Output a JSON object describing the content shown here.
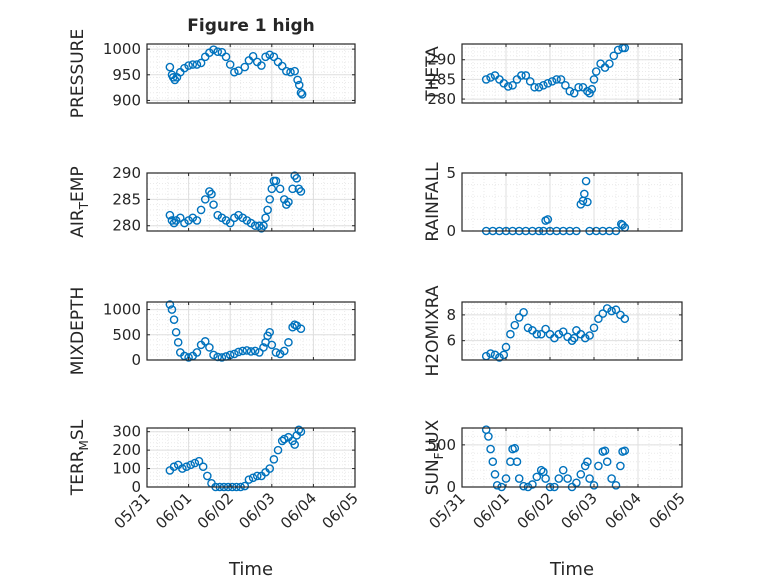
{
  "figure_title": "Figure 1 high",
  "colors": {
    "marker": "#0072BD",
    "axes": "#262626",
    "grid": "#DFDFDF",
    "minor_grid": "#EAEAEA"
  },
  "chart_data": [
    {
      "type": "scatter",
      "panel": "top-left",
      "ylabel": "PRESSURE",
      "ylim": [
        895,
        1010
      ],
      "yticks": [
        900,
        950,
        1000
      ],
      "ytick_labels": [
        "900",
        "950",
        "1000"
      ],
      "xticks": [
        "05/31",
        "06/01",
        "06/02",
        "06/03",
        "06/04",
        "06/05"
      ],
      "xlabel": "",
      "grid": true,
      "points": [
        [
          0.55,
          965
        ],
        [
          0.6,
          950
        ],
        [
          0.63,
          945
        ],
        [
          0.67,
          940
        ],
        [
          0.72,
          945
        ],
        [
          0.8,
          955
        ],
        [
          0.9,
          963
        ],
        [
          1.0,
          968
        ],
        [
          1.1,
          970
        ],
        [
          1.2,
          970
        ],
        [
          1.3,
          973
        ],
        [
          1.4,
          985
        ],
        [
          1.5,
          993
        ],
        [
          1.6,
          999
        ],
        [
          1.7,
          995
        ],
        [
          1.8,
          994
        ],
        [
          1.9,
          985
        ],
        [
          2.0,
          970
        ],
        [
          2.1,
          955
        ],
        [
          2.2,
          958
        ],
        [
          2.35,
          965
        ],
        [
          2.45,
          978
        ],
        [
          2.55,
          986
        ],
        [
          2.65,
          975
        ],
        [
          2.75,
          968
        ],
        [
          2.85,
          985
        ],
        [
          2.95,
          989
        ],
        [
          3.05,
          985
        ],
        [
          3.15,
          975
        ],
        [
          3.25,
          967
        ],
        [
          3.35,
          957
        ],
        [
          3.45,
          955
        ],
        [
          3.55,
          957
        ],
        [
          3.62,
          940
        ],
        [
          3.66,
          930
        ],
        [
          3.7,
          915
        ],
        [
          3.73,
          912
        ]
      ]
    },
    {
      "type": "scatter",
      "panel": "top-right",
      "ylabel": "THETA",
      "ylim": [
        279,
        294
      ],
      "yticks": [
        280,
        285,
        290
      ],
      "ytick_labels": [
        "280",
        "285",
        "290"
      ],
      "xticks": [
        "05/31",
        "06/01",
        "06/02",
        "06/03",
        "06/04",
        "06/05"
      ],
      "xlabel": "",
      "grid": true,
      "points": [
        [
          0.55,
          285
        ],
        [
          0.65,
          285.5
        ],
        [
          0.75,
          286
        ],
        [
          0.85,
          285
        ],
        [
          0.95,
          284
        ],
        [
          1.05,
          283.2
        ],
        [
          1.15,
          283.5
        ],
        [
          1.25,
          285
        ],
        [
          1.35,
          286
        ],
        [
          1.45,
          286
        ],
        [
          1.55,
          284.5
        ],
        [
          1.65,
          283
        ],
        [
          1.75,
          283
        ],
        [
          1.85,
          283.5
        ],
        [
          1.95,
          284
        ],
        [
          2.05,
          284.5
        ],
        [
          2.15,
          285
        ],
        [
          2.25,
          285
        ],
        [
          2.35,
          283.5
        ],
        [
          2.45,
          282
        ],
        [
          2.55,
          281.5
        ],
        [
          2.65,
          283
        ],
        [
          2.75,
          283
        ],
        [
          2.85,
          282
        ],
        [
          2.9,
          281.5
        ],
        [
          2.95,
          282.5
        ],
        [
          3.0,
          285
        ],
        [
          3.05,
          287
        ],
        [
          3.15,
          289
        ],
        [
          3.25,
          288
        ],
        [
          3.35,
          289
        ],
        [
          3.45,
          291
        ],
        [
          3.55,
          292.5
        ],
        [
          3.65,
          293
        ],
        [
          3.7,
          293
        ]
      ]
    },
    {
      "type": "scatter",
      "panel": "second-left",
      "ylabel": "AIR_TEMP",
      "ylim": [
        279,
        290
      ],
      "yticks": [
        280,
        285,
        290
      ],
      "ytick_labels": [
        "280",
        "285",
        "290"
      ],
      "xticks": [
        "05/31",
        "06/01",
        "06/02",
        "06/03",
        "06/04",
        "06/05"
      ],
      "xlabel": "",
      "grid": true,
      "points": [
        [
          0.55,
          282
        ],
        [
          0.6,
          281
        ],
        [
          0.65,
          280.5
        ],
        [
          0.7,
          281
        ],
        [
          0.8,
          281.5
        ],
        [
          0.9,
          280.5
        ],
        [
          1.0,
          281
        ],
        [
          1.1,
          281.5
        ],
        [
          1.2,
          281
        ],
        [
          1.3,
          283
        ],
        [
          1.4,
          285
        ],
        [
          1.5,
          286.5
        ],
        [
          1.55,
          286
        ],
        [
          1.6,
          284
        ],
        [
          1.7,
          282
        ],
        [
          1.8,
          281.5
        ],
        [
          1.9,
          281
        ],
        [
          2.0,
          280.5
        ],
        [
          2.1,
          281.5
        ],
        [
          2.2,
          282
        ],
        [
          2.3,
          281.5
        ],
        [
          2.4,
          281
        ],
        [
          2.5,
          280.5
        ],
        [
          2.6,
          280
        ],
        [
          2.7,
          280
        ],
        [
          2.75,
          279.5
        ],
        [
          2.8,
          280
        ],
        [
          2.85,
          281.5
        ],
        [
          2.9,
          283
        ],
        [
          2.95,
          285
        ],
        [
          3.0,
          287
        ],
        [
          3.05,
          288.5
        ],
        [
          3.1,
          288.5
        ],
        [
          3.2,
          287
        ],
        [
          3.3,
          285
        ],
        [
          3.35,
          284
        ],
        [
          3.4,
          284.5
        ],
        [
          3.5,
          287
        ],
        [
          3.55,
          289.5
        ],
        [
          3.6,
          289
        ],
        [
          3.65,
          287
        ],
        [
          3.7,
          286.5
        ]
      ]
    },
    {
      "type": "scatter",
      "panel": "second-right",
      "ylabel": "RAINFALL",
      "ylim": [
        0,
        5
      ],
      "yticks": [
        0,
        5
      ],
      "ytick_labels": [
        "0",
        "5"
      ],
      "xticks": [
        "05/31",
        "06/01",
        "06/02",
        "06/03",
        "06/04",
        "06/05"
      ],
      "xlabel": "",
      "grid": true,
      "points": [
        [
          0.55,
          0
        ],
        [
          0.7,
          0
        ],
        [
          0.85,
          0
        ],
        [
          1.0,
          0
        ],
        [
          1.15,
          0
        ],
        [
          1.3,
          0
        ],
        [
          1.45,
          0
        ],
        [
          1.6,
          0
        ],
        [
          1.75,
          0
        ],
        [
          1.85,
          0
        ],
        [
          1.9,
          0.9
        ],
        [
          1.95,
          1.0
        ],
        [
          2.0,
          0
        ],
        [
          2.15,
          0
        ],
        [
          2.3,
          0
        ],
        [
          2.45,
          0
        ],
        [
          2.6,
          0
        ],
        [
          2.7,
          2.3
        ],
        [
          2.75,
          2.6
        ],
        [
          2.78,
          3.2
        ],
        [
          2.82,
          4.3
        ],
        [
          2.85,
          2.5
        ],
        [
          2.9,
          0
        ],
        [
          3.05,
          0
        ],
        [
          3.2,
          0
        ],
        [
          3.35,
          0
        ],
        [
          3.5,
          0
        ],
        [
          3.62,
          0.6
        ],
        [
          3.65,
          0.5
        ],
        [
          3.7,
          0.3
        ]
      ]
    },
    {
      "type": "scatter",
      "panel": "third-left",
      "ylabel": "MIXDEPTH",
      "ylim": [
        0,
        1150
      ],
      "yticks": [
        0,
        500,
        1000
      ],
      "ytick_labels": [
        "0",
        "500",
        "1000"
      ],
      "xticks": [
        "05/31",
        "06/01",
        "06/02",
        "06/03",
        "06/04",
        "06/05"
      ],
      "xlabel": "",
      "grid": true,
      "points": [
        [
          0.55,
          1100
        ],
        [
          0.6,
          1000
        ],
        [
          0.65,
          800
        ],
        [
          0.7,
          550
        ],
        [
          0.75,
          350
        ],
        [
          0.8,
          150
        ],
        [
          0.9,
          80
        ],
        [
          1.0,
          50
        ],
        [
          1.1,
          80
        ],
        [
          1.2,
          150
        ],
        [
          1.3,
          300
        ],
        [
          1.4,
          370
        ],
        [
          1.5,
          250
        ],
        [
          1.6,
          100
        ],
        [
          1.7,
          60
        ],
        [
          1.8,
          50
        ],
        [
          1.9,
          70
        ],
        [
          2.0,
          100
        ],
        [
          2.1,
          120
        ],
        [
          2.2,
          160
        ],
        [
          2.3,
          180
        ],
        [
          2.4,
          190
        ],
        [
          2.5,
          170
        ],
        [
          2.6,
          180
        ],
        [
          2.7,
          150
        ],
        [
          2.8,
          250
        ],
        [
          2.85,
          350
        ],
        [
          2.9,
          480
        ],
        [
          2.95,
          550
        ],
        [
          3.0,
          300
        ],
        [
          3.1,
          150
        ],
        [
          3.2,
          120
        ],
        [
          3.3,
          180
        ],
        [
          3.4,
          350
        ],
        [
          3.5,
          650
        ],
        [
          3.55,
          700
        ],
        [
          3.6,
          680
        ],
        [
          3.7,
          620
        ]
      ]
    },
    {
      "type": "scatter",
      "panel": "third-right",
      "ylabel": "H2OMIXRA",
      "ylim": [
        4.5,
        9
      ],
      "yticks": [
        6,
        8
      ],
      "ytick_labels": [
        "6",
        "8"
      ],
      "xticks": [
        "05/31",
        "06/01",
        "06/02",
        "06/03",
        "06/04",
        "06/05"
      ],
      "xlabel": "",
      "grid": true,
      "points": [
        [
          0.55,
          4.8
        ],
        [
          0.65,
          5.0
        ],
        [
          0.75,
          4.9
        ],
        [
          0.85,
          4.7
        ],
        [
          0.95,
          4.9
        ],
        [
          1.0,
          5.5
        ],
        [
          1.1,
          6.5
        ],
        [
          1.2,
          7.2
        ],
        [
          1.3,
          7.8
        ],
        [
          1.4,
          8.2
        ],
        [
          1.5,
          7.0
        ],
        [
          1.6,
          6.8
        ],
        [
          1.7,
          6.5
        ],
        [
          1.8,
          6.5
        ],
        [
          1.9,
          6.9
        ],
        [
          2.0,
          6.5
        ],
        [
          2.1,
          6.2
        ],
        [
          2.2,
          6.5
        ],
        [
          2.3,
          6.7
        ],
        [
          2.4,
          6.3
        ],
        [
          2.5,
          6.0
        ],
        [
          2.55,
          6.2
        ],
        [
          2.6,
          6.8
        ],
        [
          2.7,
          6.5
        ],
        [
          2.8,
          6.2
        ],
        [
          2.9,
          6.4
        ],
        [
          3.0,
          7.0
        ],
        [
          3.1,
          7.7
        ],
        [
          3.2,
          8.1
        ],
        [
          3.3,
          8.5
        ],
        [
          3.4,
          8.3
        ],
        [
          3.5,
          8.4
        ],
        [
          3.6,
          8.0
        ],
        [
          3.7,
          7.7
        ]
      ]
    },
    {
      "type": "scatter",
      "panel": "bottom-left",
      "ylabel": "TERR_MSL",
      "ylim": [
        0,
        320
      ],
      "yticks": [
        0,
        100,
        200,
        300
      ],
      "ytick_labels": [
        "0",
        "100",
        "200",
        "300"
      ],
      "xticks": [
        "05/31",
        "06/01",
        "06/02",
        "06/03",
        "06/04",
        "06/05"
      ],
      "xlabel": "Time",
      "grid": true,
      "points": [
        [
          0.55,
          90
        ],
        [
          0.65,
          110
        ],
        [
          0.75,
          120
        ],
        [
          0.85,
          100
        ],
        [
          0.95,
          110
        ],
        [
          1.05,
          120
        ],
        [
          1.15,
          130
        ],
        [
          1.25,
          140
        ],
        [
          1.35,
          110
        ],
        [
          1.45,
          60
        ],
        [
          1.55,
          20
        ],
        [
          1.65,
          0
        ],
        [
          1.75,
          0
        ],
        [
          1.85,
          0
        ],
        [
          1.95,
          0
        ],
        [
          2.05,
          0
        ],
        [
          2.15,
          0
        ],
        [
          2.25,
          0
        ],
        [
          2.35,
          5
        ],
        [
          2.45,
          40
        ],
        [
          2.55,
          50
        ],
        [
          2.65,
          60
        ],
        [
          2.75,
          60
        ],
        [
          2.85,
          80
        ],
        [
          2.95,
          100
        ],
        [
          3.05,
          150
        ],
        [
          3.15,
          200
        ],
        [
          3.25,
          250
        ],
        [
          3.3,
          260
        ],
        [
          3.4,
          270
        ],
        [
          3.5,
          250
        ],
        [
          3.55,
          230
        ],
        [
          3.6,
          280
        ],
        [
          3.65,
          310
        ],
        [
          3.7,
          300
        ]
      ]
    },
    {
      "type": "scatter",
      "panel": "bottom-right",
      "ylabel": "SUN_FLUX",
      "ylim": [
        0,
        700
      ],
      "yticks": [
        0,
        500
      ],
      "ytick_labels": [
        "0",
        "500"
      ],
      "xticks": [
        "05/31",
        "06/01",
        "06/02",
        "06/03",
        "06/04",
        "06/05"
      ],
      "xlabel": "Time",
      "grid": true,
      "points": [
        [
          0.55,
          680
        ],
        [
          0.6,
          600
        ],
        [
          0.65,
          450
        ],
        [
          0.7,
          300
        ],
        [
          0.75,
          150
        ],
        [
          0.8,
          20
        ],
        [
          0.9,
          0
        ],
        [
          1.0,
          100
        ],
        [
          1.1,
          300
        ],
        [
          1.15,
          450
        ],
        [
          1.2,
          460
        ],
        [
          1.25,
          300
        ],
        [
          1.3,
          100
        ],
        [
          1.4,
          10
        ],
        [
          1.5,
          0
        ],
        [
          1.6,
          30
        ],
        [
          1.7,
          120
        ],
        [
          1.8,
          200
        ],
        [
          1.85,
          180
        ],
        [
          1.9,
          100
        ],
        [
          2.0,
          0
        ],
        [
          2.1,
          0
        ],
        [
          2.2,
          100
        ],
        [
          2.3,
          200
        ],
        [
          2.4,
          100
        ],
        [
          2.5,
          0
        ],
        [
          2.6,
          50
        ],
        [
          2.7,
          150
        ],
        [
          2.8,
          250
        ],
        [
          2.85,
          300
        ],
        [
          2.9,
          100
        ],
        [
          3.0,
          20
        ],
        [
          3.1,
          250
        ],
        [
          3.2,
          420
        ],
        [
          3.25,
          430
        ],
        [
          3.3,
          300
        ],
        [
          3.4,
          100
        ],
        [
          3.5,
          20
        ],
        [
          3.6,
          250
        ],
        [
          3.65,
          420
        ],
        [
          3.7,
          430
        ]
      ]
    }
  ]
}
